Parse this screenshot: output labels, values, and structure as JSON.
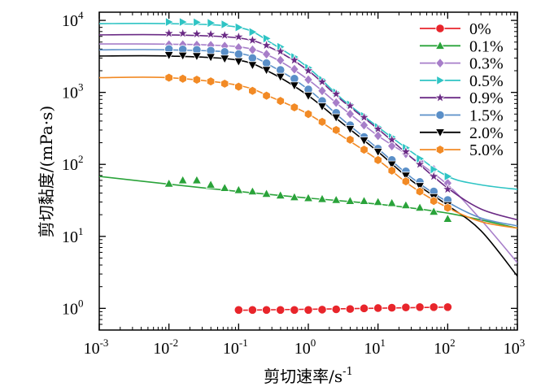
{
  "chart_data": {
    "type": "line",
    "xscale": "log",
    "yscale": "log",
    "xlim": [
      0.001,
      1000
    ],
    "ylim": [
      0.5,
      13000
    ],
    "xlabel": "剪切速率/s",
    "xlabel_sup": "-1",
    "ylabel": "剪切黏度/(mPa·s)",
    "legend_position": "top-right",
    "x_ticks": [
      {
        "base": "10",
        "exp": "-3",
        "value": 0.001
      },
      {
        "base": "10",
        "exp": "-2",
        "value": 0.01
      },
      {
        "base": "10",
        "exp": "-1",
        "value": 0.1
      },
      {
        "base": "10",
        "exp": "0",
        "value": 1
      },
      {
        "base": "10",
        "exp": "1",
        "value": 10
      },
      {
        "base": "10",
        "exp": "2",
        "value": 100
      },
      {
        "base": "10",
        "exp": "3",
        "value": 1000
      }
    ],
    "y_ticks": [
      {
        "base": "10",
        "exp": "0",
        "value": 1
      },
      {
        "base": "10",
        "exp": "1",
        "value": 10
      },
      {
        "base": "10",
        "exp": "2",
        "value": 100
      },
      {
        "base": "10",
        "exp": "3",
        "value": 1000
      },
      {
        "base": "10",
        "exp": "4",
        "value": 10000
      }
    ],
    "series": [
      {
        "name": "0%",
        "color": "#e8252b",
        "marker": "circle",
        "points": [
          [
            0.1,
            0.95
          ],
          [
            0.158,
            0.95
          ],
          [
            0.251,
            0.95
          ],
          [
            0.398,
            0.95
          ],
          [
            0.631,
            0.95
          ],
          [
            1,
            0.95
          ],
          [
            1.58,
            0.96
          ],
          [
            2.51,
            0.97
          ],
          [
            3.98,
            0.98
          ],
          [
            6.31,
            1.0
          ],
          [
            10,
            1.01
          ],
          [
            15.8,
            1.02
          ],
          [
            25.1,
            1.03
          ],
          [
            39.8,
            1.04
          ],
          [
            63.1,
            1.04
          ],
          [
            100,
            1.04
          ]
        ],
        "fit": [
          [
            0.1,
            0.94
          ],
          [
            100,
            1.04
          ]
        ]
      },
      {
        "name": "0.1%",
        "color": "#2aa33a",
        "marker": "triangle-up",
        "points": [
          [
            0.01,
            54
          ],
          [
            0.0158,
            60
          ],
          [
            0.0251,
            60
          ],
          [
            0.0398,
            52
          ],
          [
            0.0631,
            47
          ],
          [
            0.1,
            44
          ],
          [
            0.158,
            42
          ],
          [
            0.251,
            39
          ],
          [
            0.398,
            37
          ],
          [
            0.631,
            35
          ],
          [
            1,
            34
          ],
          [
            1.58,
            33
          ],
          [
            2.51,
            32
          ],
          [
            3.98,
            31
          ],
          [
            6.31,
            31
          ],
          [
            10,
            30
          ],
          [
            15.8,
            29
          ],
          [
            25.1,
            27
          ],
          [
            39.8,
            25
          ],
          [
            63.1,
            22
          ],
          [
            100,
            17.5
          ]
        ],
        "fit": [
          [
            0.001,
            68
          ],
          [
            0.01,
            53
          ],
          [
            0.1,
            42
          ],
          [
            1,
            34
          ],
          [
            10,
            28
          ],
          [
            100,
            21
          ],
          [
            1000,
            13
          ]
        ]
      },
      {
        "name": "0.3%",
        "color": "#a77ec9",
        "marker": "diamond",
        "points": [
          [
            0.01,
            4600
          ],
          [
            0.0158,
            4600
          ],
          [
            0.0251,
            4550
          ],
          [
            0.0398,
            4500
          ],
          [
            0.0631,
            4400
          ],
          [
            0.1,
            4200
          ],
          [
            0.158,
            3900
          ],
          [
            0.251,
            3400
          ],
          [
            0.398,
            2800
          ],
          [
            0.631,
            2100
          ],
          [
            1,
            1500
          ],
          [
            1.58,
            1050
          ],
          [
            2.51,
            720
          ],
          [
            3.98,
            500
          ],
          [
            6.31,
            350
          ],
          [
            10,
            250
          ],
          [
            15.8,
            180
          ],
          [
            25.1,
            140
          ],
          [
            39.8,
            110
          ],
          [
            63.1,
            85
          ],
          [
            100,
            55
          ]
        ],
        "fit": [
          [
            0.001,
            4700
          ],
          [
            0.01,
            4680
          ],
          [
            0.1,
            4300
          ],
          [
            0.3,
            3100
          ],
          [
            1,
            1500
          ],
          [
            3,
            620
          ],
          [
            10,
            250
          ],
          [
            30,
            125
          ],
          [
            100,
            52
          ],
          [
            300,
            17
          ],
          [
            1000,
            4.3
          ]
        ]
      },
      {
        "name": "0.5%",
        "color": "#2ec4c4",
        "marker": "triangle-right",
        "points": [
          [
            0.01,
            9500
          ],
          [
            0.0158,
            9500
          ],
          [
            0.0251,
            9400
          ],
          [
            0.0398,
            9200
          ],
          [
            0.0631,
            8800
          ],
          [
            0.1,
            8000
          ],
          [
            0.158,
            6900
          ],
          [
            0.251,
            5600
          ],
          [
            0.398,
            4300
          ],
          [
            0.631,
            3100
          ],
          [
            1,
            2200
          ],
          [
            1.58,
            1500
          ],
          [
            2.51,
            1000
          ],
          [
            3.98,
            680
          ],
          [
            6.31,
            470
          ],
          [
            10,
            330
          ],
          [
            15.8,
            240
          ],
          [
            25.1,
            170
          ],
          [
            39.8,
            120
          ],
          [
            63.1,
            85
          ],
          [
            100,
            68
          ]
        ],
        "fit": [
          [
            0.001,
            9000
          ],
          [
            0.01,
            9000
          ],
          [
            0.1,
            8000
          ],
          [
            0.3,
            4800
          ],
          [
            1,
            2200
          ],
          [
            3,
            820
          ],
          [
            10,
            330
          ],
          [
            30,
            150
          ],
          [
            100,
            68
          ],
          [
            300,
            52
          ],
          [
            1000,
            45
          ]
        ]
      },
      {
        "name": "0.9%",
        "color": "#6a2a85",
        "marker": "star",
        "points": [
          [
            0.01,
            6600
          ],
          [
            0.0158,
            6600
          ],
          [
            0.0251,
            6500
          ],
          [
            0.0398,
            6400
          ],
          [
            0.0631,
            6200
          ],
          [
            0.1,
            5900
          ],
          [
            0.158,
            5300
          ],
          [
            0.251,
            4500
          ],
          [
            0.398,
            3700
          ],
          [
            0.631,
            2800
          ],
          [
            1,
            2000
          ],
          [
            1.58,
            1400
          ],
          [
            2.51,
            950
          ],
          [
            3.98,
            650
          ],
          [
            6.31,
            450
          ],
          [
            10,
            310
          ],
          [
            15.8,
            220
          ],
          [
            25.1,
            150
          ],
          [
            39.8,
            100
          ],
          [
            63.1,
            68
          ],
          [
            100,
            45
          ]
        ],
        "fit": [
          [
            0.001,
            6300
          ],
          [
            0.01,
            6300
          ],
          [
            0.1,
            5700
          ],
          [
            0.3,
            4100
          ],
          [
            1,
            2000
          ],
          [
            3,
            780
          ],
          [
            10,
            310
          ],
          [
            30,
            125
          ],
          [
            100,
            47
          ],
          [
            300,
            24
          ],
          [
            1000,
            17
          ]
        ]
      },
      {
        "name": "1.5%",
        "color": "#5a8fc8",
        "marker": "circle",
        "points": [
          [
            0.01,
            4000
          ],
          [
            0.0158,
            3950
          ],
          [
            0.0251,
            3900
          ],
          [
            0.0398,
            3800
          ],
          [
            0.0631,
            3650
          ],
          [
            0.1,
            3400
          ],
          [
            0.158,
            3000
          ],
          [
            0.251,
            2550
          ],
          [
            0.398,
            2050
          ],
          [
            0.631,
            1550
          ],
          [
            1,
            1100
          ],
          [
            1.58,
            760
          ],
          [
            2.51,
            520
          ],
          [
            3.98,
            350
          ],
          [
            6.31,
            240
          ],
          [
            10,
            165
          ],
          [
            15.8,
            115
          ],
          [
            25.1,
            80
          ],
          [
            39.8,
            57
          ],
          [
            63.1,
            42
          ],
          [
            100,
            32
          ]
        ],
        "fit": [
          [
            0.001,
            3900
          ],
          [
            0.01,
            3900
          ],
          [
            0.1,
            3500
          ],
          [
            0.3,
            2300
          ],
          [
            1,
            1100
          ],
          [
            3,
            430
          ],
          [
            10,
            165
          ],
          [
            30,
            66
          ],
          [
            100,
            30
          ],
          [
            300,
            18
          ],
          [
            1000,
            14
          ]
        ]
      },
      {
        "name": "2.0%",
        "color": "#000000",
        "marker": "triangle-down",
        "points": [
          [
            0.01,
            3300
          ],
          [
            0.0158,
            3250
          ],
          [
            0.0251,
            3200
          ],
          [
            0.0398,
            3100
          ],
          [
            0.0631,
            2950
          ],
          [
            0.1,
            2700
          ],
          [
            0.158,
            2400
          ],
          [
            0.251,
            2050
          ],
          [
            0.398,
            1650
          ],
          [
            0.631,
            1250
          ],
          [
            1,
            900
          ],
          [
            1.58,
            640
          ],
          [
            2.51,
            450
          ],
          [
            3.98,
            310
          ],
          [
            6.31,
            215
          ],
          [
            10,
            150
          ],
          [
            15.8,
            100
          ],
          [
            25.1,
            70
          ],
          [
            39.8,
            50
          ],
          [
            63.1,
            35
          ],
          [
            100,
            27
          ]
        ],
        "fit": [
          [
            0.001,
            3200
          ],
          [
            0.01,
            3200
          ],
          [
            0.1,
            2800
          ],
          [
            0.3,
            1850
          ],
          [
            1,
            900
          ],
          [
            3,
            380
          ],
          [
            10,
            150
          ],
          [
            30,
            60
          ],
          [
            100,
            27
          ],
          [
            300,
            12
          ],
          [
            1000,
            2.8
          ]
        ]
      },
      {
        "name": "5.0%",
        "color": "#f28a25",
        "marker": "hexagon",
        "points": [
          [
            0.01,
            1600
          ],
          [
            0.0158,
            1550
          ],
          [
            0.0251,
            1500
          ],
          [
            0.0398,
            1420
          ],
          [
            0.0631,
            1320
          ],
          [
            0.1,
            1200
          ],
          [
            0.158,
            1050
          ],
          [
            0.251,
            900
          ],
          [
            0.398,
            760
          ],
          [
            0.631,
            620
          ],
          [
            1,
            500
          ],
          [
            1.58,
            390
          ],
          [
            2.51,
            300
          ],
          [
            3.98,
            220
          ],
          [
            6.31,
            160
          ],
          [
            10,
            115
          ],
          [
            15.8,
            82
          ],
          [
            25.1,
            58
          ],
          [
            39.8,
            42
          ],
          [
            63.1,
            31
          ],
          [
            100,
            25
          ]
        ],
        "fit": [
          [
            0.001,
            1600
          ],
          [
            0.01,
            1600
          ],
          [
            0.1,
            1250
          ],
          [
            0.3,
            850
          ],
          [
            1,
            500
          ],
          [
            3,
            250
          ],
          [
            10,
            115
          ],
          [
            30,
            50
          ],
          [
            100,
            25
          ],
          [
            300,
            16
          ],
          [
            1000,
            13
          ]
        ]
      }
    ]
  }
}
